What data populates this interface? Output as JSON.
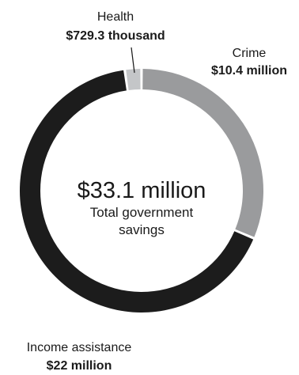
{
  "chart_data": {
    "type": "pie",
    "variant": "donut",
    "center_total": "$33.1 million",
    "center_caption": [
      "Total government",
      "savings"
    ],
    "unit": "$",
    "slices": [
      {
        "name": "Health",
        "value": 729300,
        "value_label": "$729.3 thousand",
        "color": "#c4c6c8"
      },
      {
        "name": "Crime",
        "value": 10400000,
        "value_label": "$10.4 million",
        "color": "#9a9b9d"
      },
      {
        "name": "Income assistance",
        "value": 22000000,
        "value_label": "$22 million",
        "color": "#1c1c1c"
      }
    ],
    "legend": "none"
  }
}
